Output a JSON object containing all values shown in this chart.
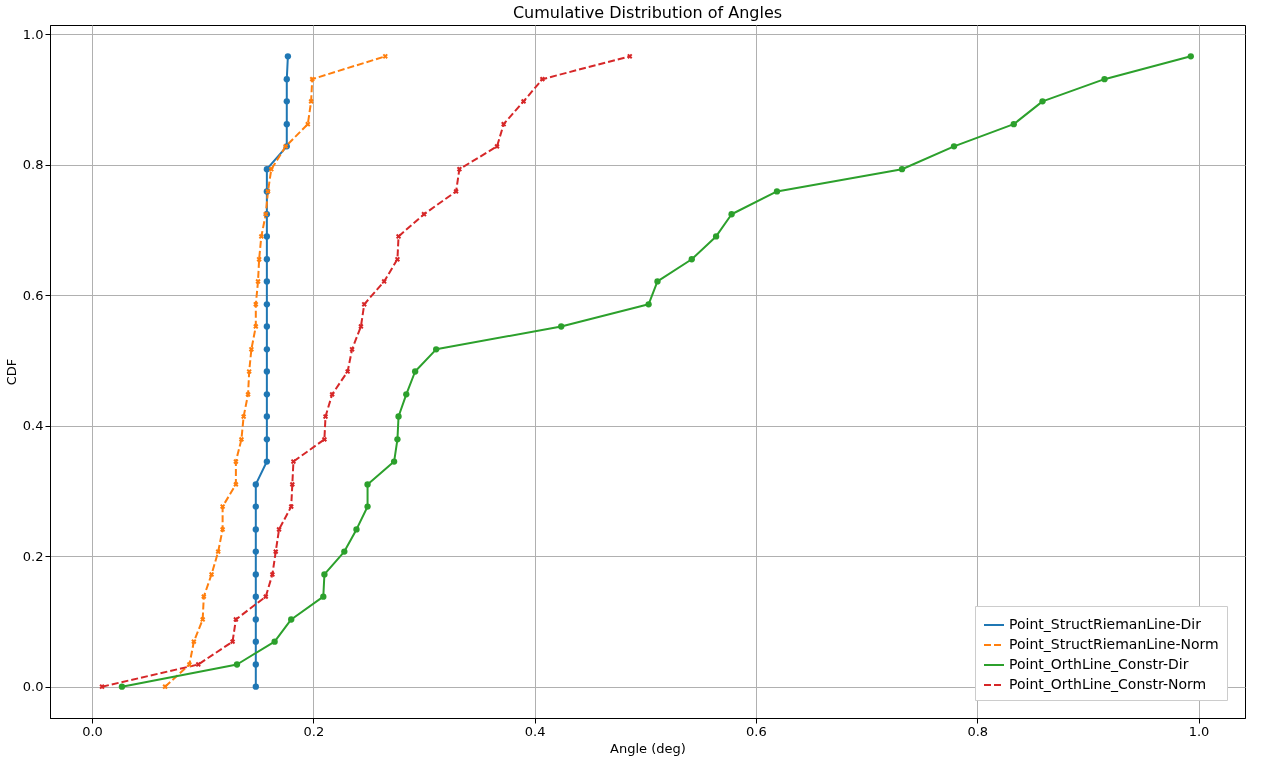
{
  "chart_data": {
    "type": "line",
    "title": "Cumulative Distribution of Angles",
    "xlabel": "Angle (deg)",
    "ylabel": "CDF",
    "xlim": [
      -0.038,
      1.042
    ],
    "ylim": [
      -0.048,
      1.014
    ],
    "xticks": [
      {
        "value": 0,
        "label": "0.0"
      },
      {
        "value": 0.2,
        "label": "0.2"
      },
      {
        "value": 0.4,
        "label": "0.4"
      },
      {
        "value": 0.6,
        "label": "0.6"
      },
      {
        "value": 0.8,
        "label": "0.8"
      },
      {
        "value": 1,
        "label": "1.0"
      }
    ],
    "yticks": [
      {
        "value": 0,
        "label": "0.0"
      },
      {
        "value": 0.2,
        "label": "0.2"
      },
      {
        "value": 0.4,
        "label": "0.4"
      },
      {
        "value": 0.6,
        "label": "0.6"
      },
      {
        "value": 0.8,
        "label": "0.8"
      },
      {
        "value": 1,
        "label": "1.0"
      }
    ],
    "grid": true,
    "legend": "bottom right",
    "series": [
      {
        "name": "Point_StructRiemanLine-Dir",
        "color": "#1f77b4",
        "marker": "circle",
        "line_style": "solid",
        "x": [
          0.148,
          0.148,
          0.148,
          0.148,
          0.148,
          0.148,
          0.148,
          0.148,
          0.148,
          0.148,
          0.158,
          0.158,
          0.158,
          0.158,
          0.158,
          0.158,
          0.158,
          0.158,
          0.158,
          0.158,
          0.158,
          0.158,
          0.158,
          0.158,
          0.176,
          0.176,
          0.176,
          0.176,
          0.177
        ],
        "values": [
          0,
          0.034,
          0.069,
          0.103,
          0.138,
          0.172,
          0.207,
          0.241,
          0.276,
          0.31,
          0.345,
          0.379,
          0.414,
          0.448,
          0.483,
          0.517,
          0.552,
          0.586,
          0.621,
          0.655,
          0.69,
          0.724,
          0.759,
          0.793,
          0.828,
          0.862,
          0.897,
          0.931,
          0.966
        ]
      },
      {
        "name": "Point_StructRiemanLine-Norm",
        "color": "#ff7f0e",
        "marker": "cross",
        "line_style": "dashed",
        "x": [
          0.066,
          0.088,
          0.092,
          0.1,
          0.101,
          0.108,
          0.114,
          0.118,
          0.118,
          0.13,
          0.13,
          0.135,
          0.137,
          0.141,
          0.142,
          0.144,
          0.148,
          0.148,
          0.15,
          0.151,
          0.153,
          0.157,
          0.159,
          0.162,
          0.175,
          0.195,
          0.198,
          0.199,
          0.265
        ],
        "values": [
          0,
          0.034,
          0.069,
          0.103,
          0.138,
          0.172,
          0.207,
          0.241,
          0.276,
          0.31,
          0.345,
          0.379,
          0.414,
          0.448,
          0.483,
          0.517,
          0.552,
          0.586,
          0.621,
          0.655,
          0.69,
          0.724,
          0.759,
          0.793,
          0.828,
          0.862,
          0.897,
          0.931,
          0.966
        ]
      },
      {
        "name": "Point_OrthLine_Constr-Dir",
        "color": "#2ca02c",
        "marker": "circle",
        "line_style": "solid",
        "x": [
          0.027,
          0.131,
          0.165,
          0.18,
          0.209,
          0.21,
          0.228,
          0.239,
          0.249,
          0.249,
          0.273,
          0.276,
          0.277,
          0.284,
          0.292,
          0.311,
          0.424,
          0.503,
          0.511,
          0.542,
          0.564,
          0.578,
          0.619,
          0.732,
          0.779,
          0.833,
          0.859,
          0.915,
          0.993
        ],
        "values": [
          0,
          0.034,
          0.069,
          0.103,
          0.138,
          0.172,
          0.207,
          0.241,
          0.276,
          0.31,
          0.345,
          0.379,
          0.414,
          0.448,
          0.483,
          0.517,
          0.552,
          0.586,
          0.621,
          0.655,
          0.69,
          0.724,
          0.759,
          0.793,
          0.828,
          0.862,
          0.897,
          0.931,
          0.966
        ]
      },
      {
        "name": "Point_OrthLine_Constr-Norm",
        "color": "#d62728",
        "marker": "cross",
        "line_style": "dashed",
        "x": [
          0.009,
          0.096,
          0.127,
          0.13,
          0.157,
          0.163,
          0.166,
          0.169,
          0.18,
          0.181,
          0.182,
          0.21,
          0.211,
          0.217,
          0.231,
          0.235,
          0.243,
          0.246,
          0.264,
          0.276,
          0.277,
          0.3,
          0.329,
          0.332,
          0.366,
          0.372,
          0.39,
          0.407,
          0.486
        ],
        "values": [
          0,
          0.034,
          0.069,
          0.103,
          0.138,
          0.172,
          0.207,
          0.241,
          0.276,
          0.31,
          0.345,
          0.379,
          0.414,
          0.448,
          0.483,
          0.517,
          0.552,
          0.586,
          0.621,
          0.655,
          0.69,
          0.724,
          0.759,
          0.793,
          0.828,
          0.862,
          0.897,
          0.931,
          0.966
        ]
      }
    ]
  }
}
